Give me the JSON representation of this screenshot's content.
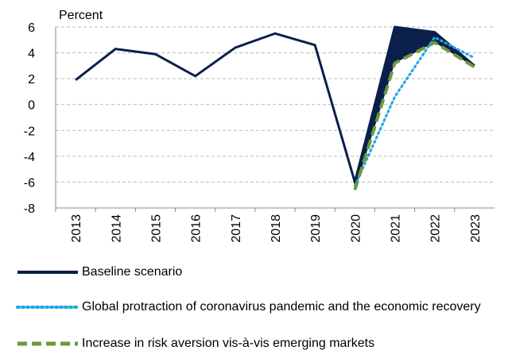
{
  "chart_data": {
    "type": "line",
    "y_label": "Percent",
    "categories": [
      "2013",
      "2014",
      "2015",
      "2016",
      "2017",
      "2018",
      "2019",
      "2020",
      "2021",
      "2022",
      "2023"
    ],
    "series": [
      {
        "name": "Baseline scenario",
        "color": "#0b1f4b",
        "style": "solid",
        "values": [
          1.9,
          4.3,
          3.9,
          2.2,
          4.4,
          5.5,
          4.6,
          -6.0,
          6.0,
          5.6,
          3.0
        ]
      },
      {
        "name": "Global protraction of coronavirus pandemic and the economic recovery",
        "color": "#1ea7e1",
        "style": "dotted",
        "values": [
          null,
          null,
          null,
          null,
          null,
          null,
          null,
          -6.3,
          0.6,
          5.2,
          3.6
        ]
      },
      {
        "name": "Increase in risk aversion vis-à-vis emerging markets",
        "color": "#6a9a3a",
        "style": "dashed",
        "values": [
          null,
          null,
          null,
          null,
          null,
          null,
          null,
          -6.6,
          3.2,
          4.8,
          2.9
        ]
      }
    ],
    "ylim": [
      -8,
      6
    ],
    "yticks": [
      -8,
      -6,
      -4,
      -2,
      0,
      2,
      4,
      6
    ],
    "grid": true
  }
}
